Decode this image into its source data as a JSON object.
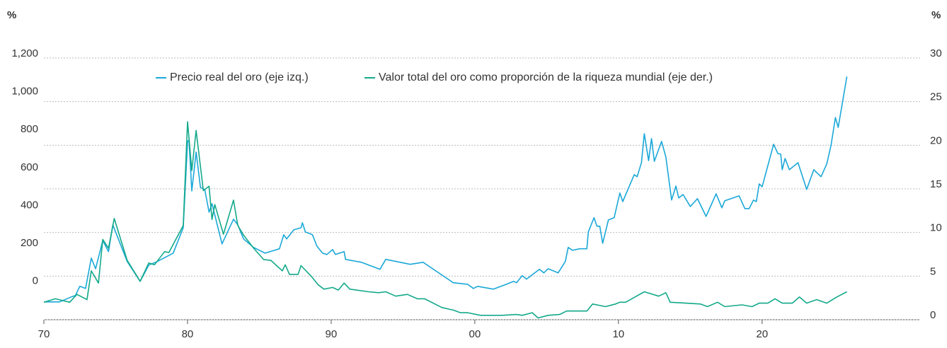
{
  "chart_data": {
    "type": "line",
    "legend": [
      "Precio real del oro (eje izq.)",
      "Valor total del oro como proporción de la riqueza mundial (eje der.)"
    ],
    "y_unit": "%",
    "y2_unit": "%",
    "xlim": [
      1970,
      2031
    ],
    "xticks": [
      {
        "value": 1970,
        "label": "70"
      },
      {
        "value": 1980,
        "label": "80"
      },
      {
        "value": 1990,
        "label": "90"
      },
      {
        "value": 2000,
        "label": "00"
      },
      {
        "value": 2010,
        "label": "10"
      },
      {
        "value": 2020,
        "label": "20"
      }
    ],
    "ylim": [
      -180,
      1200
    ],
    "yticks": [
      0,
      200,
      400,
      600,
      800,
      {
        "value": 1000,
        "label": "1,000"
      },
      {
        "value": 1200,
        "label": "1,200"
      }
    ],
    "y2lim": [
      0,
      30
    ],
    "y2ticks": [
      0,
      5,
      10,
      15,
      20,
      25,
      30
    ],
    "grid": true,
    "legend_position": "top",
    "series": [
      {
        "name": "Precio real del oro (eje izq.)",
        "color": "#1ba8d8",
        "x": [
          1970.0,
          1971.1,
          1971.9,
          1972.2,
          1972.5,
          1972.9,
          1973.3,
          1973.6,
          1974.1,
          1974.5,
          1974.8,
          1975.8,
          1976.7,
          1977.3,
          1977.9,
          1979.0,
          1979.7,
          1980.0,
          1980.1,
          1980.3,
          1980.6,
          1980.9,
          1981.2,
          1981.5,
          1981.7,
          1982.4,
          1983.2,
          1983.5,
          1983.9,
          1984.6,
          1985.4,
          1986.4,
          1986.7,
          1986.9,
          1987.4,
          1987.9,
          1988.0,
          1988.2,
          1988.7,
          1989.0,
          1989.4,
          1989.7,
          1990.1,
          1990.3,
          1990.9,
          1991.0,
          1992.1,
          1993.4,
          1993.8,
          1995.5,
          1996.4,
          1998.5,
          1999.5,
          1999.9,
          2000.2,
          2001.3,
          2002.2,
          2002.7,
          2002.9,
          2003.3,
          2003.6,
          2004.5,
          2004.8,
          2005.1,
          2005.8,
          2006.3,
          2006.5,
          2006.8,
          2007.3,
          2007.8,
          2007.9,
          2008.3,
          2008.5,
          2008.7,
          2008.9,
          2009.3,
          2009.7,
          2010.1,
          2010.3,
          2011.1,
          2011.3,
          2011.6,
          2011.8,
          2012.1,
          2012.3,
          2012.5,
          2013.0,
          2013.3,
          2013.7,
          2014.0,
          2014.2,
          2014.5,
          2015.0,
          2015.5,
          2016.1,
          2016.8,
          2017.2,
          2017.4,
          2018.4,
          2018.8,
          2019.1,
          2019.4,
          2019.6,
          2019.8,
          2020.0,
          2020.8,
          2021.1,
          2021.3,
          2021.4,
          2021.6,
          2021.9,
          2022.5,
          2023.1,
          2023.6,
          2024.1,
          2024.5,
          2024.8,
          2025.1,
          2025.3,
          2025.9
        ],
        "values": [
          -86,
          -86,
          -60,
          -52,
          -4,
          -15,
          145,
          89,
          238,
          179,
          320,
          127,
          22,
          108,
          127,
          171,
          305,
          760,
          767,
          499,
          704,
          518,
          506,
          387,
          432,
          220,
          350,
          320,
          246,
          201,
          171,
          194,
          268,
          246,
          294,
          305,
          331,
          283,
          268,
          209,
          171,
          164,
          190,
          164,
          179,
          138,
          123,
          86,
          138,
          112,
          123,
          15,
          7,
          -15,
          -4,
          -19,
          7,
          22,
          15,
          52,
          34,
          86,
          67,
          89,
          67,
          127,
          201,
          186,
          194,
          194,
          283,
          358,
          313,
          313,
          223,
          346,
          358,
          488,
          443,
          585,
          574,
          648,
          801,
          659,
          775,
          655,
          760,
          678,
          451,
          525,
          462,
          480,
          417,
          458,
          365,
          484,
          410,
          447,
          473,
          406,
          406,
          451,
          443,
          536,
          521,
          745,
          696,
          693,
          611,
          670,
          611,
          648,
          507,
          611,
          574,
          641,
          741,
          886,
          834,
          1102
        ]
      },
      {
        "name": "Valor total del oro como proporción de la riqueza mundial (eje der.)",
        "color": "#13a98a",
        "axis": "y2",
        "x": [
          1970.0,
          1970.8,
          1971.8,
          1972.3,
          1973.0,
          1973.3,
          1973.8,
          1974.1,
          1974.5,
          1974.9,
          1975.8,
          1976.7,
          1977.3,
          1977.7,
          1978.4,
          1978.7,
          1979.7,
          1980.0,
          1980.3,
          1980.6,
          1981.1,
          1981.5,
          1981.7,
          1981.9,
          1982.5,
          1983.2,
          1983.5,
          1983.9,
          1984.6,
          1985.3,
          1985.8,
          1986.6,
          1986.8,
          1987.1,
          1987.7,
          1987.9,
          1988.6,
          1989.1,
          1989.5,
          1990.1,
          1990.5,
          1990.9,
          1991.3,
          1992.6,
          1993.3,
          1993.8,
          1994.5,
          1995.3,
          1996.0,
          1996.5,
          1997.7,
          1998.5,
          1999.0,
          1999.5,
          2000.4,
          2001.9,
          2002.9,
          2003.3,
          2004.0,
          2004.4,
          2005.1,
          2005.9,
          2006.4,
          2007.8,
          2008.2,
          2009.1,
          2009.8,
          2010.1,
          2010.5,
          2011.8,
          2012.8,
          2013.3,
          2013.6,
          2014.7,
          2015.7,
          2016.2,
          2016.9,
          2017.4,
          2018.6,
          2019.3,
          2019.8,
          2020.4,
          2020.9,
          2021.4,
          2022.1,
          2022.6,
          2023.1,
          2023.8,
          2024.5,
          2025.2,
          2025.9
        ],
        "values": [
          2.0,
          2.4,
          2.0,
          2.9,
          2.3,
          5.6,
          4.2,
          9.2,
          8.2,
          11.6,
          6.8,
          4.4,
          6.5,
          6.3,
          7.8,
          7.7,
          10.8,
          22.7,
          17.1,
          21.7,
          14.8,
          15.3,
          11.5,
          13.2,
          9.8,
          13.7,
          10.8,
          9.7,
          8.2,
          6.9,
          6.8,
          5.6,
          6.3,
          5.2,
          5.2,
          6.2,
          5.0,
          4.0,
          3.5,
          3.7,
          3.4,
          4.2,
          3.5,
          3.2,
          3.1,
          3.2,
          2.7,
          2.9,
          2.4,
          2.4,
          1.4,
          1.1,
          0.8,
          0.8,
          0.5,
          0.5,
          0.6,
          0.5,
          0.8,
          0.2,
          0.5,
          0.6,
          1.0,
          1.0,
          1.8,
          1.5,
          1.8,
          2.0,
          2.0,
          3.2,
          2.7,
          3.1,
          2.0,
          1.9,
          1.8,
          1.5,
          2.0,
          1.5,
          1.7,
          1.5,
          1.9,
          1.9,
          2.4,
          1.9,
          1.9,
          2.6,
          1.9,
          2.3,
          1.9,
          2.6,
          3.2
        ]
      }
    ]
  }
}
